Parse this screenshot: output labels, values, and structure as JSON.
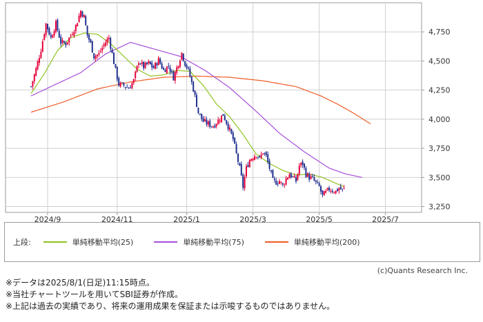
{
  "chart_data": {
    "type": "candlestick",
    "y_ticks": [
      "4,750",
      "4,500",
      "4,250",
      "4,000",
      "3,750",
      "3,500",
      "3,250"
    ],
    "y_tick_values": [
      4750,
      4500,
      4250,
      4000,
      3750,
      3500,
      3250
    ],
    "ylim": [
      3200,
      5000
    ],
    "x_ticks": [
      "2024/9",
      "2024/11",
      "2025/1",
      "2025/3",
      "2025/5",
      "2025/7"
    ],
    "x_tick_index": [
      10,
      52,
      94,
      134,
      174,
      214
    ],
    "n_days": 230,
    "colors": {
      "up": "#e4003a",
      "down": "#1f2f8f",
      "ma25": "#8dc21f",
      "ma75": "#a64dd9",
      "ma200": "#f05a24",
      "grid": "#cfcfcf",
      "frame": "#9a9a9a"
    },
    "close_anchors": [
      [
        0,
        4280
      ],
      [
        3,
        4430
      ],
      [
        6,
        4600
      ],
      [
        9,
        4820
      ],
      [
        12,
        4700
      ],
      [
        15,
        4820
      ],
      [
        18,
        4660
      ],
      [
        21,
        4650
      ],
      [
        24,
        4720
      ],
      [
        27,
        4800
      ],
      [
        30,
        4930
      ],
      [
        32,
        4880
      ],
      [
        34,
        4720
      ],
      [
        36,
        4650
      ],
      [
        38,
        4540
      ],
      [
        41,
        4560
      ],
      [
        44,
        4640
      ],
      [
        47,
        4700
      ],
      [
        49,
        4560
      ],
      [
        51,
        4420
      ],
      [
        53,
        4300
      ],
      [
        56,
        4290
      ],
      [
        59,
        4270
      ],
      [
        62,
        4330
      ],
      [
        65,
        4500
      ],
      [
        68,
        4450
      ],
      [
        71,
        4480
      ],
      [
        74,
        4440
      ],
      [
        77,
        4510
      ],
      [
        80,
        4420
      ],
      [
        83,
        4460
      ],
      [
        86,
        4360
      ],
      [
        88,
        4440
      ],
      [
        91,
        4570
      ],
      [
        93,
        4480
      ],
      [
        95,
        4420
      ],
      [
        98,
        4260
      ],
      [
        101,
        4060
      ],
      [
        104,
        3980
      ],
      [
        107,
        3960
      ],
      [
        110,
        3940
      ],
      [
        113,
        3990
      ],
      [
        116,
        4040
      ],
      [
        119,
        3940
      ],
      [
        122,
        3830
      ],
      [
        124,
        3700
      ],
      [
        126,
        3580
      ],
      [
        128,
        3420
      ],
      [
        130,
        3580
      ],
      [
        132,
        3650
      ],
      [
        134,
        3680
      ],
      [
        136,
        3700
      ],
      [
        138,
        3660
      ],
      [
        140,
        3720
      ],
      [
        142,
        3680
      ],
      [
        144,
        3580
      ],
      [
        146,
        3470
      ],
      [
        148,
        3460
      ],
      [
        150,
        3470
      ],
      [
        152,
        3430
      ],
      [
        154,
        3490
      ],
      [
        156,
        3530
      ],
      [
        158,
        3500
      ],
      [
        160,
        3470
      ],
      [
        162,
        3600
      ],
      [
        164,
        3620
      ],
      [
        166,
        3530
      ],
      [
        168,
        3500
      ],
      [
        170,
        3490
      ],
      [
        172,
        3450
      ],
      [
        174,
        3420
      ],
      [
        176,
        3340
      ],
      [
        178,
        3370
      ],
      [
        180,
        3400
      ],
      [
        182,
        3390
      ],
      [
        184,
        3380
      ],
      [
        186,
        3410
      ],
      [
        188,
        3390
      ],
      [
        189,
        3400
      ]
    ],
    "ma25_anchors": [
      [
        0,
        4220
      ],
      [
        8,
        4390
      ],
      [
        16,
        4590
      ],
      [
        24,
        4700
      ],
      [
        32,
        4740
      ],
      [
        40,
        4730
      ],
      [
        48,
        4650
      ],
      [
        56,
        4540
      ],
      [
        64,
        4430
      ],
      [
        72,
        4370
      ],
      [
        80,
        4380
      ],
      [
        88,
        4420
      ],
      [
        96,
        4410
      ],
      [
        104,
        4290
      ],
      [
        112,
        4130
      ],
      [
        120,
        4020
      ],
      [
        128,
        3870
      ],
      [
        136,
        3700
      ],
      [
        144,
        3620
      ],
      [
        152,
        3560
      ],
      [
        160,
        3520
      ],
      [
        168,
        3530
      ],
      [
        176,
        3500
      ],
      [
        184,
        3450
      ],
      [
        189,
        3420
      ]
    ],
    "ma75_anchors": [
      [
        0,
        4200
      ],
      [
        15,
        4300
      ],
      [
        30,
        4400
      ],
      [
        45,
        4560
      ],
      [
        60,
        4660
      ],
      [
        75,
        4600
      ],
      [
        90,
        4540
      ],
      [
        105,
        4420
      ],
      [
        120,
        4270
      ],
      [
        135,
        4080
      ],
      [
        150,
        3880
      ],
      [
        165,
        3720
      ],
      [
        180,
        3580
      ],
      [
        190,
        3530
      ],
      [
        200,
        3500
      ]
    ],
    "ma200_anchors": [
      [
        0,
        4060
      ],
      [
        20,
        4150
      ],
      [
        40,
        4260
      ],
      [
        60,
        4320
      ],
      [
        80,
        4360
      ],
      [
        100,
        4370
      ],
      [
        120,
        4360
      ],
      [
        140,
        4330
      ],
      [
        160,
        4280
      ],
      [
        175,
        4200
      ],
      [
        185,
        4130
      ],
      [
        195,
        4050
      ],
      [
        205,
        3960
      ]
    ]
  },
  "legend": {
    "prefix": "上段:",
    "ma25": "単純移動平均(25)",
    "ma75": "単純移動平均(75)",
    "ma200": "単純移動平均(200)"
  },
  "credit": "(c)Quants Research Inc.",
  "notes": [
    "※データは2025/8/1(日足)11:15時点。",
    "※当社チャートツールを用いてSBI証券が作成。",
    "※上記は過去の実績であり、将来の運用成果を保証または示唆するものではありません。"
  ]
}
